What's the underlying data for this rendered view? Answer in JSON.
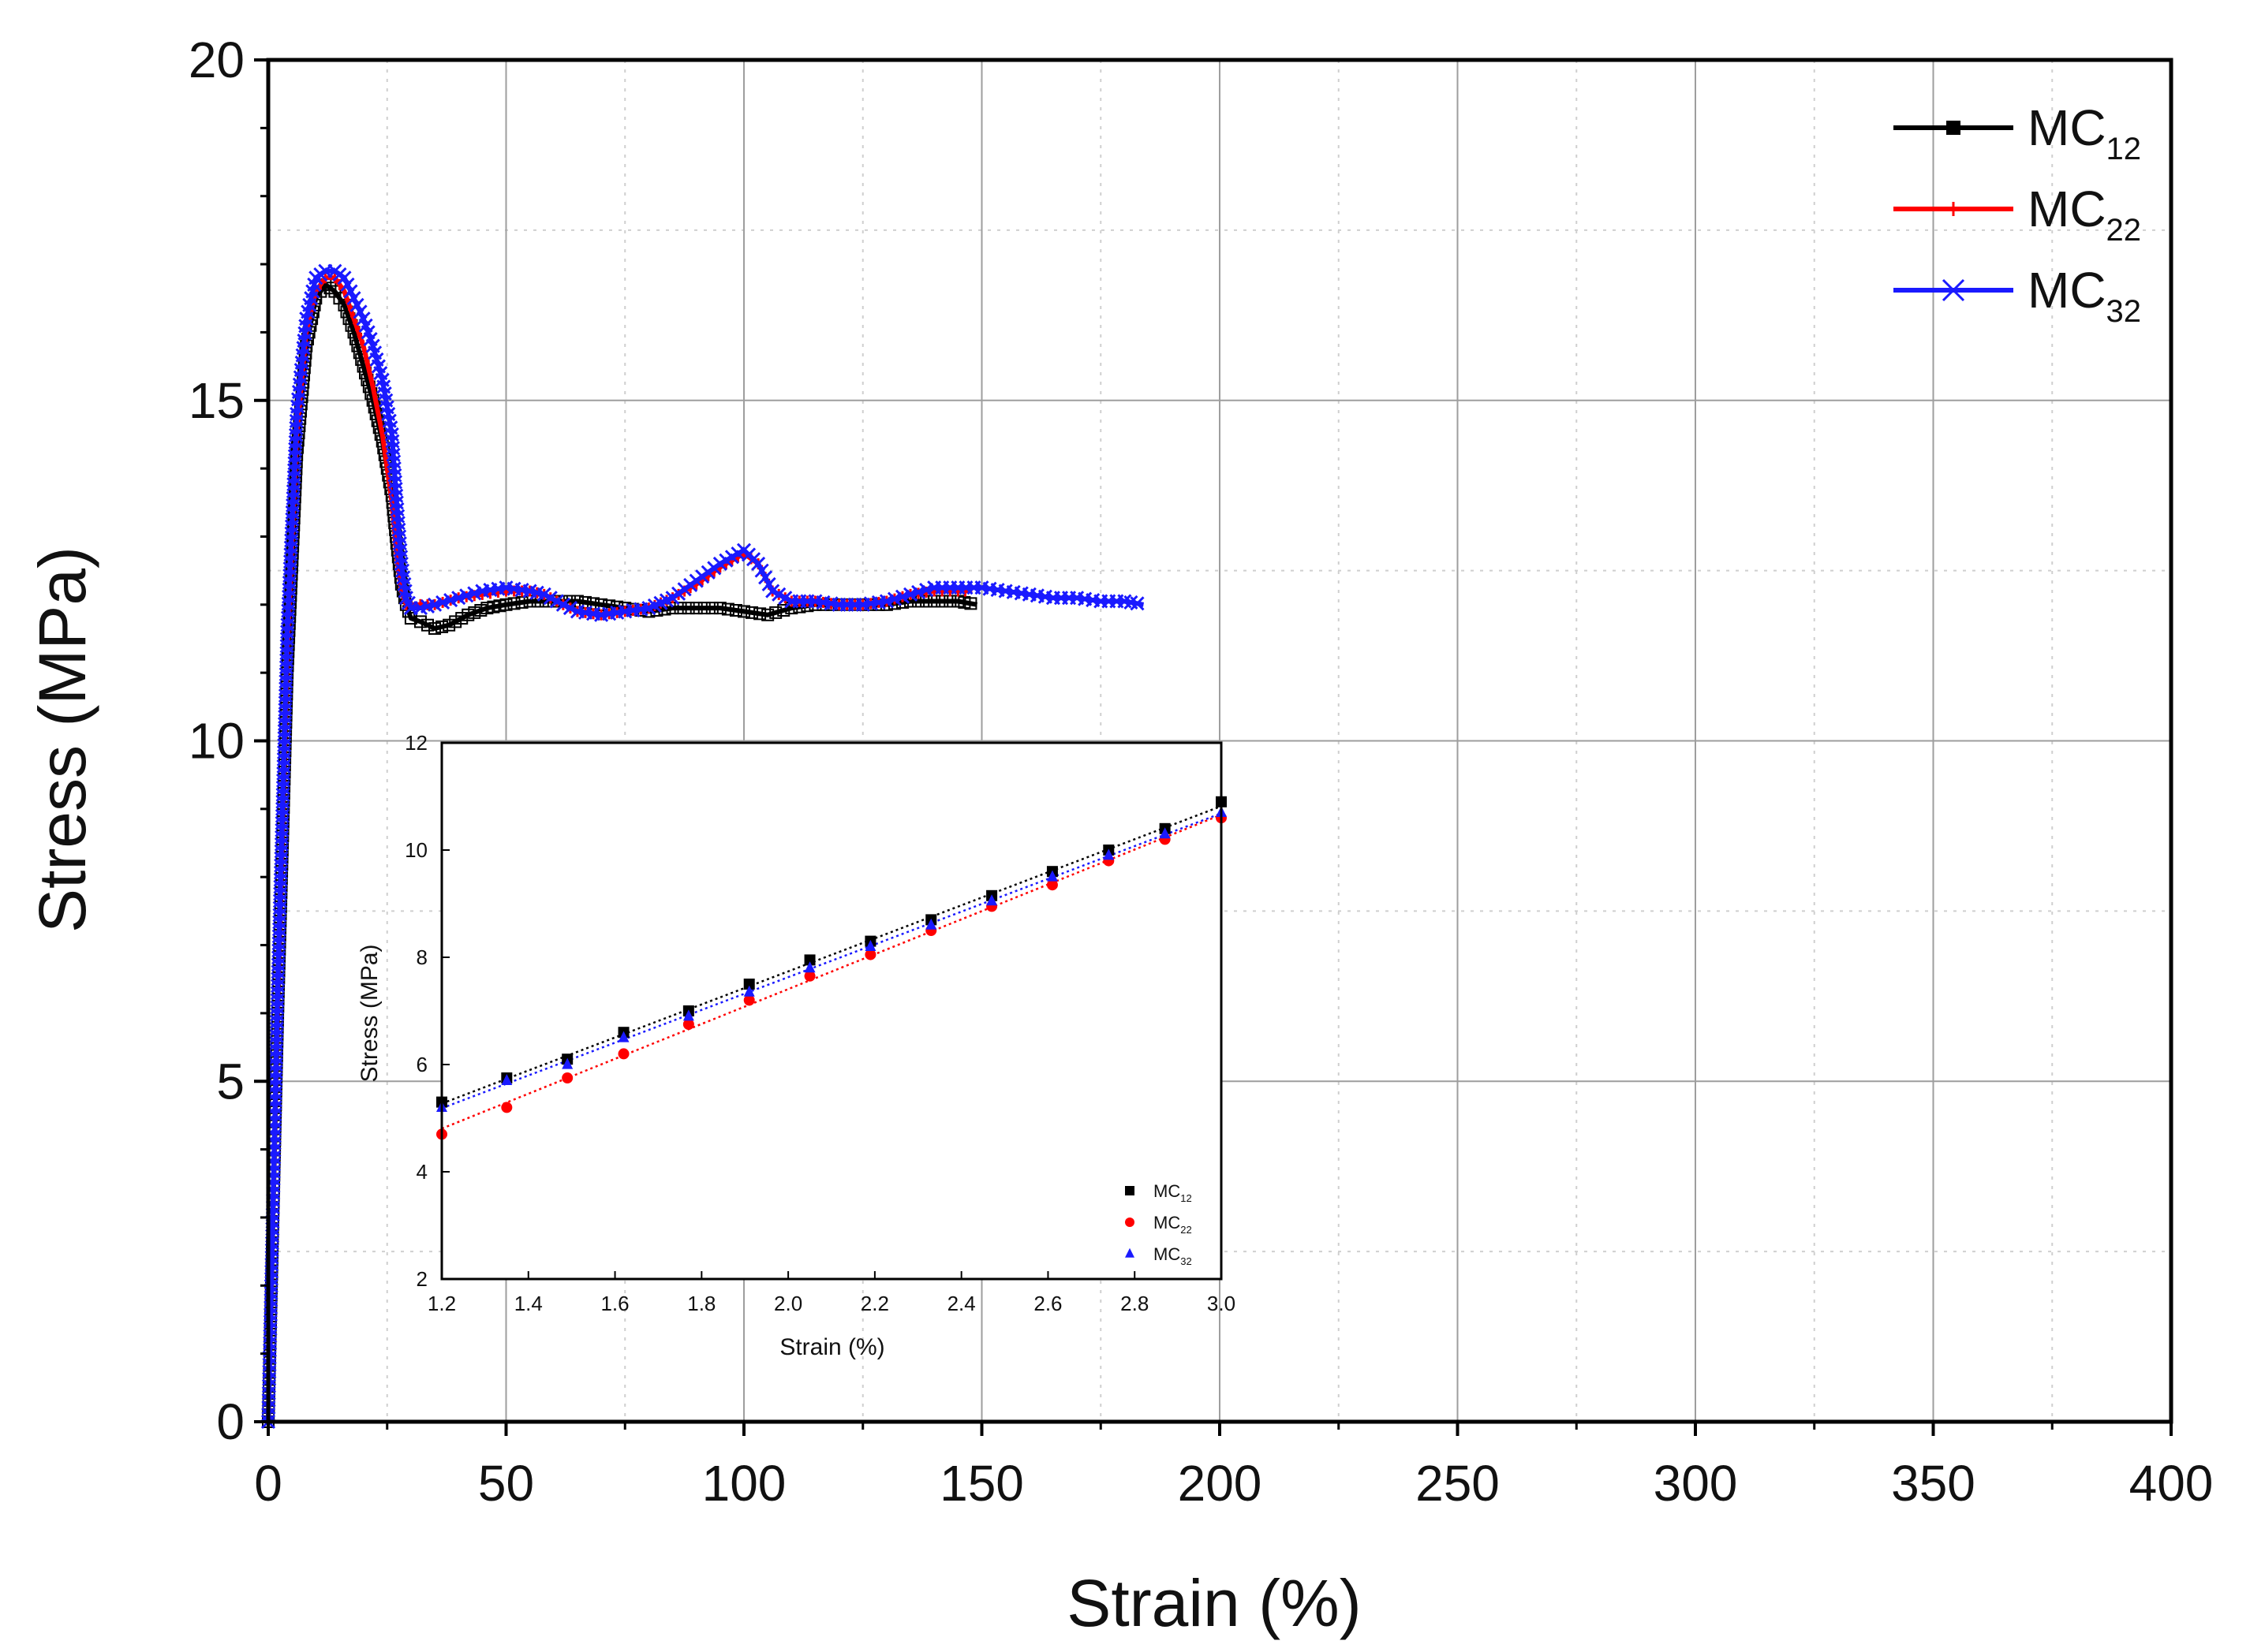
{
  "chart_data": [
    {
      "id": "main",
      "type": "line",
      "title": "",
      "xlabel": "Strain (%)",
      "ylabel": "Stress (MPa)",
      "xlim": [
        0,
        400
      ],
      "ylim": [
        0,
        20
      ],
      "xticks": [
        0,
        50,
        100,
        150,
        200,
        250,
        300,
        350,
        400
      ],
      "yticks": [
        0,
        5,
        10,
        15,
        20
      ],
      "grid": true,
      "legend_position": "top-right",
      "series": [
        {
          "name": "MC",
          "subscript": "12",
          "color": "#000000",
          "marker": "square",
          "x": [
            0,
            2,
            4,
            6,
            8,
            10,
            12,
            14,
            16,
            18,
            20,
            22,
            24,
            26,
            27,
            28,
            29,
            30,
            32,
            35,
            38,
            42,
            46,
            50,
            55,
            60,
            65,
            70,
            75,
            80,
            85,
            90,
            95,
            100,
            105,
            110,
            115,
            120,
            125,
            130,
            135,
            140,
            145,
            149
          ],
          "y": [
            0,
            6,
            11,
            14.2,
            15.8,
            16.5,
            16.7,
            16.6,
            16.4,
            16.0,
            15.5,
            15.0,
            14.4,
            13.6,
            12.9,
            12.3,
            12.0,
            11.8,
            11.75,
            11.65,
            11.7,
            11.85,
            11.95,
            12.0,
            12.05,
            12.05,
            12.05,
            12.0,
            11.95,
            11.9,
            11.95,
            11.95,
            11.95,
            11.9,
            11.85,
            11.95,
            12.0,
            12.0,
            12.0,
            12.0,
            12.05,
            12.05,
            12.05,
            12.0
          ]
        },
        {
          "name": "MC",
          "subscript": "22",
          "color": "#ff0000",
          "marker": "vline",
          "x": [
            0,
            2,
            4,
            6,
            8,
            10,
            12,
            14,
            16,
            18,
            20,
            22,
            24,
            26,
            27,
            28,
            29,
            30,
            32,
            35,
            40,
            45,
            50,
            55,
            58,
            62,
            65,
            70,
            75,
            80,
            85,
            90,
            95,
            100,
            103,
            106,
            110,
            115,
            120,
            125,
            130,
            135,
            140,
            145,
            148
          ],
          "y": [
            0,
            6.2,
            11.3,
            14.5,
            16.0,
            16.6,
            16.8,
            16.8,
            16.6,
            16.2,
            15.8,
            15.2,
            14.5,
            13.5,
            12.7,
            12.2,
            12.0,
            12.0,
            12.0,
            12.0,
            12.1,
            12.15,
            12.2,
            12.2,
            12.15,
            12.0,
            11.9,
            11.85,
            11.9,
            11.95,
            12.1,
            12.3,
            12.55,
            12.75,
            12.6,
            12.2,
            12.05,
            12.05,
            12.0,
            12.0,
            12.05,
            12.15,
            12.2,
            12.2,
            12.2
          ]
        },
        {
          "name": "MC",
          "subscript": "32",
          "color": "#1a1aff",
          "marker": "x",
          "x": [
            0,
            2,
            4,
            6,
            8,
            10,
            12,
            14,
            16,
            18,
            20,
            22,
            24,
            26,
            27,
            28,
            29,
            30,
            32,
            35,
            40,
            45,
            50,
            55,
            58,
            62,
            65,
            70,
            75,
            80,
            85,
            90,
            95,
            100,
            103,
            106,
            110,
            115,
            120,
            125,
            130,
            135,
            140,
            145,
            150,
            155,
            160,
            165,
            170,
            175,
            180,
            184
          ],
          "y": [
            0,
            6.4,
            11.6,
            14.8,
            16.2,
            16.8,
            16.9,
            16.9,
            16.8,
            16.5,
            16.2,
            15.8,
            15.3,
            14.5,
            13.5,
            12.6,
            12.1,
            11.95,
            11.95,
            12.0,
            12.1,
            12.2,
            12.25,
            12.2,
            12.15,
            12.0,
            11.9,
            11.85,
            11.9,
            11.95,
            12.1,
            12.35,
            12.6,
            12.8,
            12.6,
            12.2,
            12.05,
            12.05,
            12.0,
            12.0,
            12.05,
            12.15,
            12.25,
            12.25,
            12.25,
            12.2,
            12.15,
            12.1,
            12.1,
            12.05,
            12.05,
            12.0
          ]
        }
      ]
    },
    {
      "id": "inset",
      "type": "scatter",
      "title": "",
      "xlabel": "Strain (%)",
      "ylabel": "Stress (MPa)",
      "xlim": [
        1.2,
        3.0
      ],
      "ylim": [
        2,
        12
      ],
      "xticks": [
        "1.2",
        "1.4",
        "1.6",
        "1.8",
        "2.0",
        "2.2",
        "2.4",
        "2.6",
        "2.8",
        "3.0"
      ],
      "yticks": [
        "2",
        "4",
        "6",
        "8",
        "10",
        "12"
      ],
      "grid": false,
      "legend_position": "bottom-right",
      "fit_lines": "dotted linear fits",
      "series": [
        {
          "name": "MC",
          "subscript": "12",
          "color": "#000000",
          "marker": "square",
          "x": [
            1.2,
            1.35,
            1.49,
            1.62,
            1.77,
            1.91,
            2.05,
            2.19,
            2.33,
            2.47,
            2.61,
            2.74,
            2.87,
            3.0
          ],
          "y": [
            5.3,
            5.75,
            6.1,
            6.6,
            7.0,
            7.5,
            7.95,
            8.3,
            8.7,
            9.15,
            9.6,
            10.0,
            10.4,
            10.9
          ]
        },
        {
          "name": "MC",
          "subscript": "22",
          "color": "#ff0000",
          "marker": "circle",
          "x": [
            1.2,
            1.35,
            1.49,
            1.62,
            1.77,
            1.91,
            2.05,
            2.19,
            2.33,
            2.47,
            2.61,
            2.74,
            2.87,
            3.0
          ],
          "y": [
            4.7,
            5.2,
            5.75,
            6.2,
            6.75,
            7.2,
            7.65,
            8.05,
            8.5,
            8.95,
            9.35,
            9.8,
            10.2,
            10.6
          ]
        },
        {
          "name": "MC",
          "subscript": "32",
          "color": "#1a1aff",
          "marker": "triangle",
          "x": [
            1.2,
            1.35,
            1.49,
            1.62,
            1.77,
            1.91,
            2.05,
            2.19,
            2.33,
            2.47,
            2.61,
            2.74,
            2.87,
            3.0
          ],
          "y": [
            5.2,
            5.7,
            6.0,
            6.5,
            6.9,
            7.35,
            7.8,
            8.2,
            8.6,
            9.05,
            9.5,
            9.9,
            10.3,
            10.7
          ]
        }
      ]
    }
  ]
}
